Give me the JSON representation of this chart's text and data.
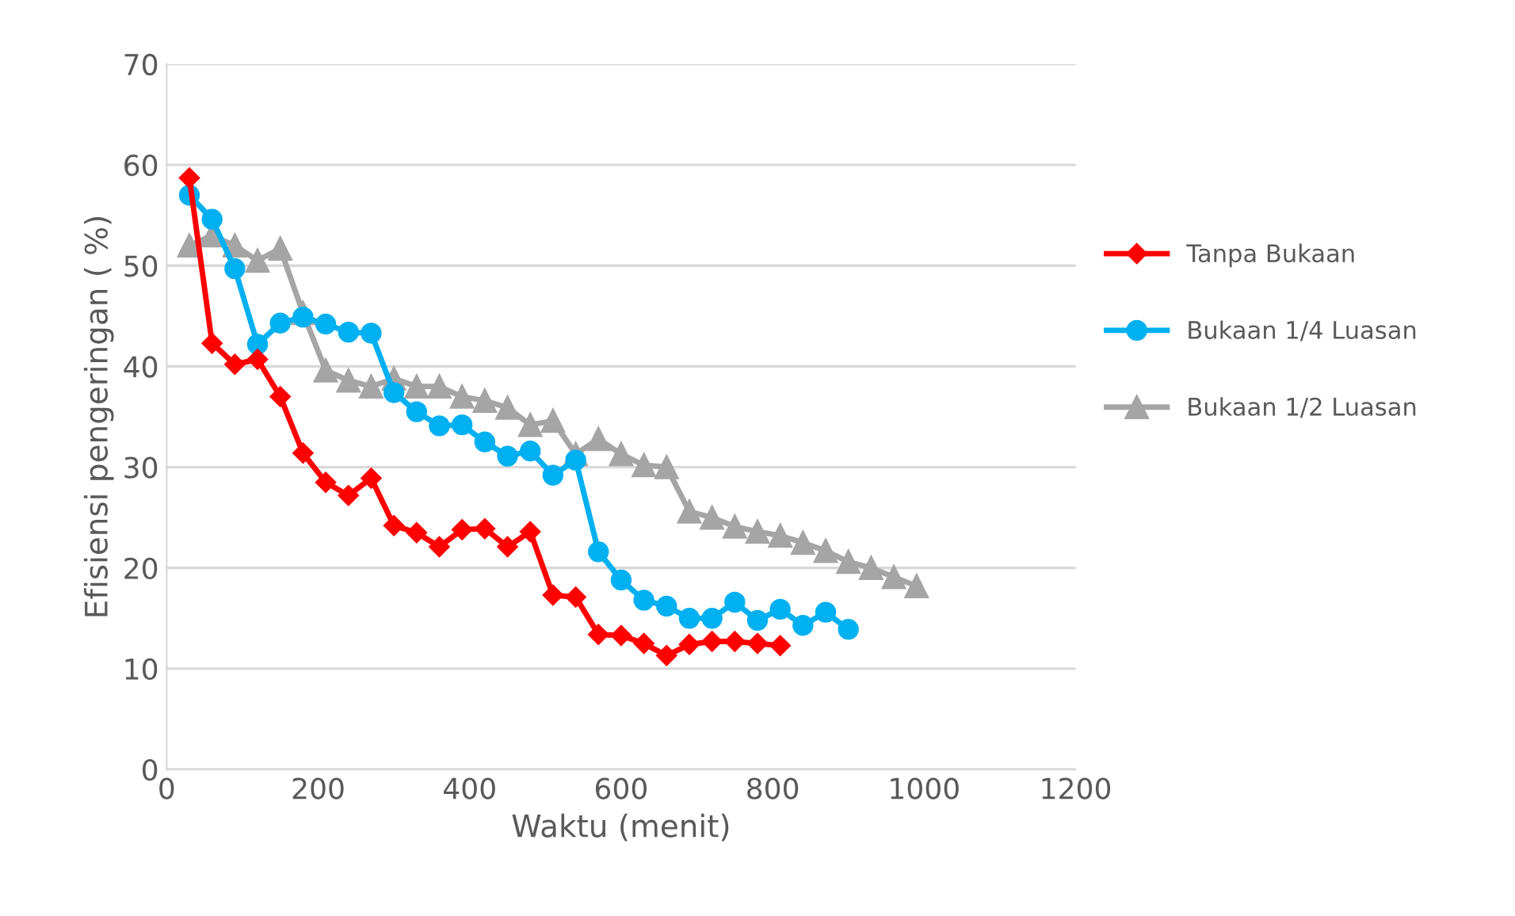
{
  "chart_data": {
    "type": "line",
    "xlabel": "Waktu (menit)",
    "ylabel": "Efisiensi pengeringan ( %)",
    "xlim": [
      0,
      1200
    ],
    "xticks": [
      0,
      200,
      400,
      600,
      800,
      1000,
      1200
    ],
    "ylim": [
      0,
      70
    ],
    "yticks": [
      0,
      10,
      20,
      30,
      40,
      50,
      60,
      70
    ],
    "grid": "y",
    "legend": "right",
    "line_style": "solid",
    "series": [
      {
        "name": "Tanpa Bukaan",
        "color": "#ff0000",
        "marker": "diamond",
        "x": [
          30,
          60,
          90,
          120,
          150,
          180,
          210,
          240,
          270,
          300,
          330,
          360,
          390,
          420,
          450,
          480,
          510,
          540,
          570,
          600,
          630,
          660,
          690,
          720,
          750,
          780,
          810
        ],
        "values": [
          58.7,
          42.3,
          40.2,
          40.7,
          37.0,
          31.4,
          28.5,
          27.2,
          28.9,
          24.2,
          23.5,
          22.1,
          23.8,
          23.9,
          22.1,
          23.6,
          17.3,
          17.1,
          13.4,
          13.3,
          12.5,
          11.3,
          12.4,
          12.7,
          12.7,
          12.5,
          12.3
        ]
      },
      {
        "name": "Bukaan 1/4 Luasan",
        "color": "#00b0f0",
        "marker": "circle",
        "x": [
          30,
          60,
          90,
          120,
          150,
          180,
          210,
          240,
          270,
          300,
          330,
          360,
          390,
          420,
          450,
          480,
          510,
          540,
          570,
          600,
          630,
          660,
          690,
          720,
          750,
          780,
          810,
          840,
          870,
          900
        ],
        "values": [
          57.0,
          54.6,
          49.7,
          42.2,
          44.3,
          44.9,
          44.2,
          43.4,
          43.3,
          37.4,
          35.5,
          34.1,
          34.2,
          32.5,
          31.1,
          31.6,
          29.2,
          30.7,
          21.6,
          18.8,
          16.8,
          16.2,
          15.0,
          15.0,
          16.6,
          14.8,
          15.9,
          14.3,
          15.6,
          13.9
        ]
      },
      {
        "name": "Bukaan 1/2 Luasan",
        "color": "#a5a5a5",
        "marker": "triangle",
        "x": [
          30,
          60,
          90,
          120,
          150,
          180,
          210,
          240,
          270,
          300,
          330,
          360,
          390,
          420,
          450,
          480,
          510,
          540,
          570,
          600,
          630,
          660,
          690,
          720,
          750,
          780,
          810,
          840,
          870,
          900,
          930,
          960,
          990
        ],
        "values": [
          52.0,
          53.0,
          52.0,
          50.5,
          51.7,
          45.3,
          39.6,
          38.6,
          38.0,
          38.8,
          38.0,
          38.0,
          37.0,
          36.6,
          35.9,
          34.2,
          34.6,
          31.3,
          32.8,
          31.3,
          30.2,
          30.0,
          25.6,
          25.0,
          24.1,
          23.6,
          23.2,
          22.5,
          21.7,
          20.6,
          20.0,
          19.1,
          18.2
        ]
      }
    ]
  }
}
